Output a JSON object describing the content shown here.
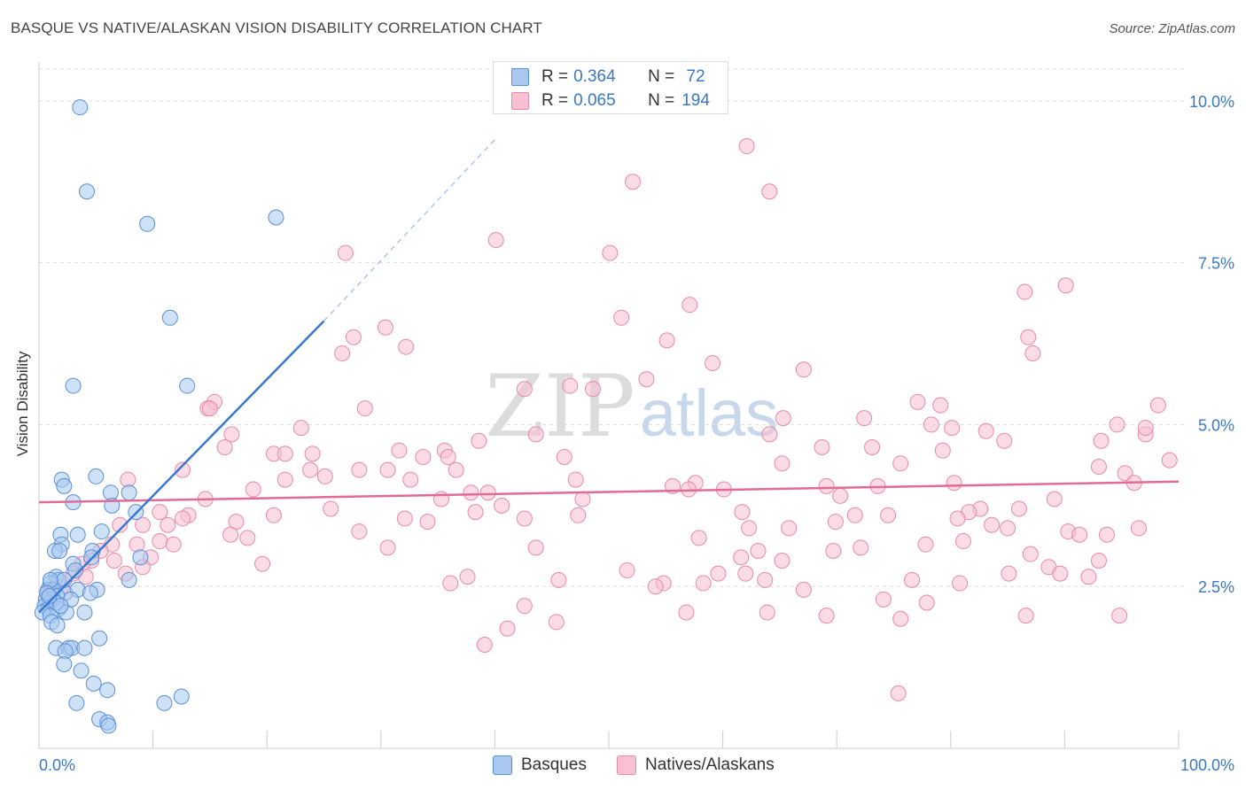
{
  "header": {
    "title": "BASQUE VS NATIVE/ALASKAN VISION DISABILITY CORRELATION CHART",
    "source": "Source: ZipAtlas.com"
  },
  "watermark": {
    "zip": "ZIP",
    "atlas": "atlas"
  },
  "legend_top": {
    "rows": [
      {
        "r_label": "R = ",
        "r_value": "0.364",
        "n_label": "N = ",
        "n_value": " 72",
        "color": "#a8c8f0",
        "stroke": "#5b8fd6"
      },
      {
        "r_label": "R = ",
        "r_value": "0.065",
        "n_label": "N = ",
        "n_value": "194",
        "color": "#f8c0d0",
        "stroke": "#e88aa8"
      }
    ]
  },
  "legend_bottom": {
    "items": [
      {
        "label": "Basques",
        "color": "#a8c8f0",
        "stroke": "#5b8fd6"
      },
      {
        "label": "Natives/Alaskans",
        "color": "#f8c0d0",
        "stroke": "#e88aa8"
      }
    ]
  },
  "chart_data": {
    "type": "scatter",
    "title": "BASQUE VS NATIVE/ALASKAN VISION DISABILITY CORRELATION CHART",
    "xlabel": "",
    "ylabel": "Vision Disability",
    "xlim": [
      0,
      100
    ],
    "ylim": [
      0,
      10.6
    ],
    "x_tick_labels": [
      "0.0%",
      "100.0%"
    ],
    "y_ticks": [
      2.5,
      5.0,
      7.5,
      10.0
    ],
    "y_tick_labels": [
      "2.5%",
      "5.0%",
      "7.5%",
      "10.0%"
    ],
    "grid": true,
    "series": [
      {
        "name": "Basques",
        "color": "#a8c8f0",
        "stroke": "#5b8fd6",
        "trend": {
          "x0": 0,
          "y0": 2.1,
          "x1": 25,
          "y1": 6.6,
          "dash_to_x": 40,
          "dash_to_y": 9.4,
          "color": "#3a78d0"
        },
        "points": [
          [
            3.6,
            9.9
          ],
          [
            4.2,
            8.6
          ],
          [
            9.5,
            8.1
          ],
          [
            20.8,
            8.2
          ],
          [
            11.5,
            6.65
          ],
          [
            3.0,
            5.6
          ],
          [
            13.0,
            5.6
          ],
          [
            2.0,
            4.15
          ],
          [
            5.0,
            4.2
          ],
          [
            2.2,
            4.05
          ],
          [
            7.9,
            3.95
          ],
          [
            6.3,
            3.95
          ],
          [
            3.0,
            3.8
          ],
          [
            6.4,
            3.75
          ],
          [
            8.5,
            3.65
          ],
          [
            5.5,
            3.35
          ],
          [
            1.9,
            3.3
          ],
          [
            3.4,
            3.3
          ],
          [
            2.0,
            3.15
          ],
          [
            1.4,
            3.05
          ],
          [
            1.8,
            3.05
          ],
          [
            4.7,
            3.05
          ],
          [
            3.0,
            2.85
          ],
          [
            8.9,
            2.95
          ],
          [
            3.2,
            2.75
          ],
          [
            1.5,
            2.65
          ],
          [
            1.7,
            2.6
          ],
          [
            2.2,
            2.6
          ],
          [
            7.9,
            2.6
          ],
          [
            1.0,
            2.55
          ],
          [
            0.8,
            2.45
          ],
          [
            1.3,
            2.45
          ],
          [
            2.3,
            2.4
          ],
          [
            3.4,
            2.45
          ],
          [
            5.1,
            2.45
          ],
          [
            1.6,
            2.35
          ],
          [
            0.6,
            2.3
          ],
          [
            1.2,
            2.3
          ],
          [
            4.5,
            2.4
          ],
          [
            0.9,
            2.25
          ],
          [
            0.5,
            2.2
          ],
          [
            0.8,
            2.15
          ],
          [
            0.3,
            2.1
          ],
          [
            1.7,
            2.15
          ],
          [
            2.4,
            2.1
          ],
          [
            4.0,
            2.1
          ],
          [
            1.0,
            2.05
          ],
          [
            1.1,
            1.95
          ],
          [
            1.6,
            1.9
          ],
          [
            5.3,
            1.7
          ],
          [
            1.5,
            1.55
          ],
          [
            2.6,
            1.55
          ],
          [
            2.9,
            1.55
          ],
          [
            4.0,
            1.55
          ],
          [
            2.3,
            1.5
          ],
          [
            2.2,
            1.3
          ],
          [
            3.7,
            1.2
          ],
          [
            4.8,
            1.0
          ],
          [
            6.0,
            0.9
          ],
          [
            3.3,
            0.7
          ],
          [
            12.5,
            0.8
          ],
          [
            11.0,
            0.7
          ],
          [
            5.3,
            0.45
          ],
          [
            6.0,
            0.4
          ],
          [
            6.1,
            0.35
          ],
          [
            1.0,
            2.6
          ],
          [
            1.5,
            2.25
          ],
          [
            0.7,
            2.4
          ],
          [
            2.8,
            2.3
          ],
          [
            4.6,
            2.95
          ],
          [
            0.9,
            2.35
          ],
          [
            1.9,
            2.2
          ]
        ]
      },
      {
        "name": "Natives/Alaskans",
        "color": "#f8c0d0",
        "stroke": "#e88aa8",
        "trend": {
          "x0": 0,
          "y0": 3.8,
          "x1": 100,
          "y1": 4.12,
          "color": "#e06b98"
        },
        "points": [
          [
            62.1,
            9.3
          ],
          [
            52.1,
            8.75
          ],
          [
            64.1,
            8.6
          ],
          [
            40.1,
            7.85
          ],
          [
            26.9,
            7.65
          ],
          [
            50.1,
            7.65
          ],
          [
            90.1,
            7.15
          ],
          [
            86.5,
            7.05
          ],
          [
            57.1,
            6.85
          ],
          [
            51.1,
            6.65
          ],
          [
            30.4,
            6.5
          ],
          [
            27.6,
            6.35
          ],
          [
            55.1,
            6.3
          ],
          [
            86.8,
            6.35
          ],
          [
            87.2,
            6.1
          ],
          [
            32.2,
            6.2
          ],
          [
            59.1,
            5.95
          ],
          [
            67.1,
            5.85
          ],
          [
            53.3,
            5.7
          ],
          [
            42.6,
            5.55
          ],
          [
            46.6,
            5.6
          ],
          [
            48.6,
            5.55
          ],
          [
            15.4,
            5.35
          ],
          [
            14.8,
            5.25
          ],
          [
            15.0,
            5.25
          ],
          [
            28.6,
            5.25
          ],
          [
            77.1,
            5.35
          ],
          [
            79.1,
            5.3
          ],
          [
            98.2,
            5.3
          ],
          [
            72.4,
            5.1
          ],
          [
            65.3,
            5.1
          ],
          [
            78.3,
            5.0
          ],
          [
            23.0,
            4.95
          ],
          [
            43.6,
            4.85
          ],
          [
            16.9,
            4.85
          ],
          [
            83.1,
            4.9
          ],
          [
            80.1,
            4.95
          ],
          [
            64.1,
            4.85
          ],
          [
            97.1,
            4.85
          ],
          [
            38.6,
            4.75
          ],
          [
            84.7,
            4.75
          ],
          [
            93.2,
            4.75
          ],
          [
            16.3,
            4.65
          ],
          [
            68.7,
            4.65
          ],
          [
            73.1,
            4.65
          ],
          [
            31.6,
            4.6
          ],
          [
            35.6,
            4.6
          ],
          [
            20.6,
            4.55
          ],
          [
            24.0,
            4.55
          ],
          [
            21.6,
            4.55
          ],
          [
            33.7,
            4.5
          ],
          [
            35.9,
            4.5
          ],
          [
            46.1,
            4.5
          ],
          [
            79.3,
            4.6
          ],
          [
            65.2,
            4.4
          ],
          [
            75.6,
            4.4
          ],
          [
            12.6,
            4.3
          ],
          [
            23.8,
            4.3
          ],
          [
            28.1,
            4.3
          ],
          [
            30.6,
            4.3
          ],
          [
            36.6,
            4.3
          ],
          [
            99.2,
            4.45
          ],
          [
            93.0,
            4.35
          ],
          [
            95.3,
            4.25
          ],
          [
            96.1,
            4.1
          ],
          [
            7.8,
            4.15
          ],
          [
            21.6,
            4.15
          ],
          [
            25.1,
            4.2
          ],
          [
            32.6,
            4.15
          ],
          [
            47.1,
            4.15
          ],
          [
            57.6,
            4.1
          ],
          [
            80.3,
            4.1
          ],
          [
            18.8,
            4.0
          ],
          [
            57.0,
            4.0
          ],
          [
            69.1,
            4.05
          ],
          [
            73.6,
            4.05
          ],
          [
            55.6,
            4.05
          ],
          [
            60.1,
            4.0
          ],
          [
            37.9,
            3.95
          ],
          [
            39.4,
            3.95
          ],
          [
            70.3,
            3.9
          ],
          [
            14.6,
            3.85
          ],
          [
            47.7,
            3.85
          ],
          [
            35.3,
            3.85
          ],
          [
            40.6,
            3.75
          ],
          [
            82.6,
            3.7
          ],
          [
            86.0,
            3.7
          ],
          [
            89.1,
            3.85
          ],
          [
            10.6,
            3.65
          ],
          [
            25.6,
            3.7
          ],
          [
            81.6,
            3.65
          ],
          [
            74.5,
            3.6
          ],
          [
            61.7,
            3.65
          ],
          [
            38.3,
            3.65
          ],
          [
            13.1,
            3.6
          ],
          [
            12.6,
            3.55
          ],
          [
            20.6,
            3.6
          ],
          [
            47.3,
            3.6
          ],
          [
            42.6,
            3.55
          ],
          [
            32.1,
            3.55
          ],
          [
            34.1,
            3.5
          ],
          [
            17.3,
            3.5
          ],
          [
            69.9,
            3.5
          ],
          [
            71.6,
            3.6
          ],
          [
            80.6,
            3.55
          ],
          [
            7.1,
            3.45
          ],
          [
            9.1,
            3.45
          ],
          [
            11.3,
            3.45
          ],
          [
            62.3,
            3.4
          ],
          [
            65.8,
            3.4
          ],
          [
            83.6,
            3.45
          ],
          [
            96.5,
            3.4
          ],
          [
            85.0,
            3.4
          ],
          [
            16.8,
            3.3
          ],
          [
            90.3,
            3.35
          ],
          [
            93.7,
            3.3
          ],
          [
            28.1,
            3.35
          ],
          [
            91.3,
            3.3
          ],
          [
            18.3,
            3.25
          ],
          [
            57.9,
            3.25
          ],
          [
            81.1,
            3.2
          ],
          [
            10.6,
            3.2
          ],
          [
            11.8,
            3.15
          ],
          [
            6.4,
            3.15
          ],
          [
            8.6,
            3.15
          ],
          [
            77.8,
            3.15
          ],
          [
            30.6,
            3.1
          ],
          [
            43.6,
            3.1
          ],
          [
            72.1,
            3.1
          ],
          [
            63.1,
            3.05
          ],
          [
            69.7,
            3.05
          ],
          [
            87.0,
            3.0
          ],
          [
            5.4,
            3.05
          ],
          [
            9.8,
            2.95
          ],
          [
            6.6,
            2.9
          ],
          [
            61.6,
            2.95
          ],
          [
            93.0,
            2.9
          ],
          [
            4.6,
            2.9
          ],
          [
            19.6,
            2.85
          ],
          [
            65.2,
            2.9
          ],
          [
            3.8,
            2.85
          ],
          [
            9.1,
            2.8
          ],
          [
            51.6,
            2.75
          ],
          [
            7.6,
            2.7
          ],
          [
            59.6,
            2.7
          ],
          [
            62.0,
            2.7
          ],
          [
            88.6,
            2.8
          ],
          [
            92.1,
            2.65
          ],
          [
            4.1,
            2.65
          ],
          [
            37.6,
            2.65
          ],
          [
            45.6,
            2.6
          ],
          [
            54.8,
            2.55
          ],
          [
            58.3,
            2.55
          ],
          [
            63.7,
            2.6
          ],
          [
            76.6,
            2.6
          ],
          [
            80.8,
            2.55
          ],
          [
            85.1,
            2.7
          ],
          [
            89.6,
            2.7
          ],
          [
            67.1,
            2.45
          ],
          [
            54.1,
            2.5
          ],
          [
            36.1,
            2.55
          ],
          [
            1.0,
            2.45
          ],
          [
            74.1,
            2.3
          ],
          [
            77.9,
            2.25
          ],
          [
            42.6,
            2.2
          ],
          [
            56.8,
            2.1
          ],
          [
            69.1,
            2.05
          ],
          [
            63.9,
            2.1
          ],
          [
            86.6,
            2.05
          ],
          [
            94.8,
            2.05
          ],
          [
            75.6,
            2.0
          ],
          [
            45.4,
            1.95
          ],
          [
            41.1,
            1.85
          ],
          [
            39.1,
            1.6
          ],
          [
            75.4,
            0.85
          ],
          [
            2.0,
            2.5
          ],
          [
            3.0,
            2.7
          ],
          [
            26.6,
            6.1
          ],
          [
            97.1,
            4.95
          ],
          [
            94.6,
            5.0
          ]
        ]
      }
    ]
  }
}
